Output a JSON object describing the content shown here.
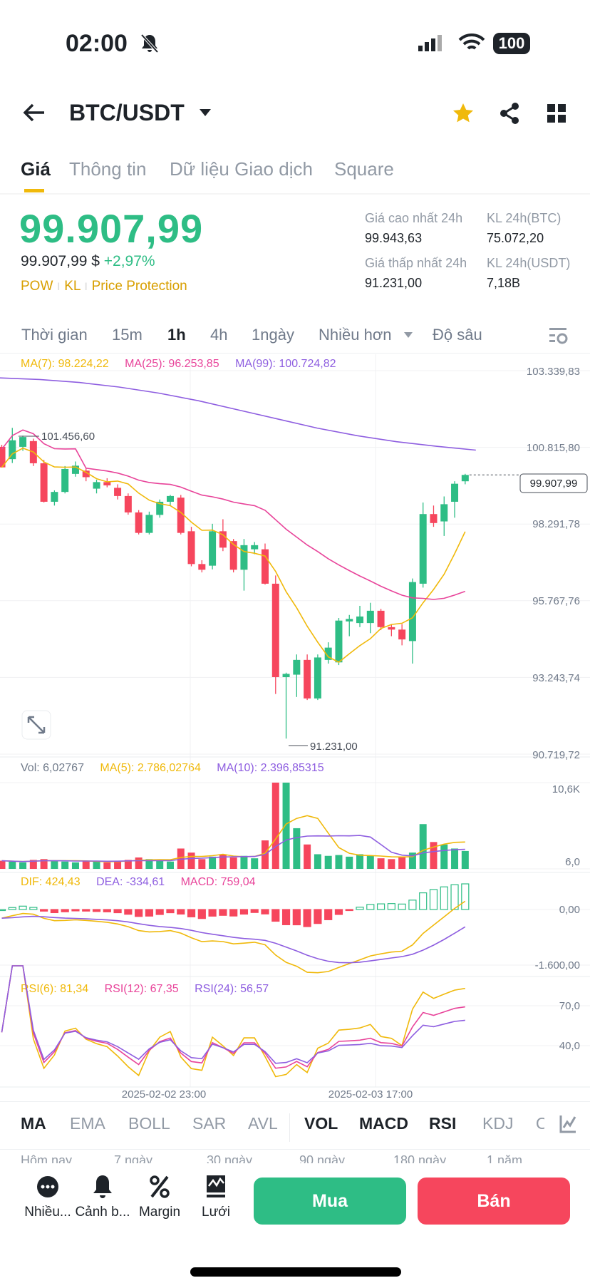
{
  "status": {
    "time": "02:00",
    "battery": "100"
  },
  "header": {
    "pair": "BTC/USDT"
  },
  "tabs": [
    "Giá",
    "Thông tin",
    "Dữ liệu Giao dịch",
    "Square"
  ],
  "price": {
    "last": "99.907,99",
    "usd": "99.907,99 $",
    "change": "+2,97%",
    "tags": [
      "POW",
      "KL",
      "Price Protection"
    ]
  },
  "stats": [
    {
      "label": "Giá cao nhất 24h",
      "value": "99.943,63"
    },
    {
      "label": "KL 24h(BTC)",
      "value": "75.072,20"
    },
    {
      "label": "Giá thấp nhất 24h",
      "value": "91.231,00"
    },
    {
      "label": "KL 24h(USDT)",
      "value": "7,18B"
    }
  ],
  "timeframes": [
    "Thời gian",
    "15m",
    "1h",
    "4h",
    "1ngày",
    "Nhiều hơn",
    "Độ sâu"
  ],
  "legends": {
    "ma7": "MA(7): 98.224,22",
    "ma25": "MA(25): 96.253,85",
    "ma99": "MA(99): 100.724,82",
    "vol": "Vol: 6,02767",
    "vma5": "MA(5): 2.786,02764",
    "vma10": "MA(10): 2.396,85315",
    "dif": "DIF: 424,43",
    "dea": "DEA: -334,61",
    "macd": "MACD: 759,04",
    "rsi6": "RSI(6): 81,34",
    "rsi12": "RSI(12): 67,35",
    "rsi24": "RSI(24): 56,57"
  },
  "colors": {
    "up": "#2ebd85",
    "down": "#f6465d",
    "ma7": "#f0b90b",
    "ma25": "#e8449a",
    "ma99": "#8e5ee0"
  },
  "chart_data": {
    "type": "candlestick",
    "price_ticks": [
      "103.339,83",
      "100.815,80",
      "98.291,78",
      "95.767,76",
      "93.243,74",
      "90.719,72"
    ],
    "price_tick_values": [
      103339.83,
      100815.8,
      98291.78,
      95767.76,
      93243.74,
      90719.72
    ],
    "high_label": "101.456,60",
    "low_label": "91.231,00",
    "last_label": "99.907,99",
    "vol_ticks": [
      "10,6K",
      "6,0"
    ],
    "macd_ticks": [
      "0,00",
      "-1.600,00"
    ],
    "rsi_ticks": [
      "70,0",
      "40,0"
    ],
    "x_labels": [
      "2025-02-02 23:00",
      "2025-02-03 17:00"
    ],
    "ohlc": [
      [
        100832,
        100900,
        100150,
        100157
      ],
      [
        100427,
        101456.6,
        100300,
        101048
      ],
      [
        100832,
        101200,
        100700,
        101155
      ],
      [
        101021,
        101100,
        100200,
        100292
      ],
      [
        100292,
        100400,
        99000,
        99025
      ],
      [
        99025,
        99400,
        98900,
        99348
      ],
      [
        99348,
        100200,
        99300,
        100104
      ],
      [
        99942,
        100350,
        99850,
        100212
      ],
      [
        100050,
        100150,
        99700,
        99834
      ],
      [
        99456,
        99750,
        99300,
        99672
      ],
      [
        99672,
        99800,
        99500,
        99564
      ],
      [
        99483,
        99600,
        99100,
        99214
      ],
      [
        99214,
        99300,
        98600,
        98674
      ],
      [
        98674,
        98750,
        97950,
        98000
      ],
      [
        98000,
        98700,
        97950,
        98593
      ],
      [
        98593,
        99100,
        98500,
        99025
      ],
      [
        99025,
        99250,
        98900,
        99214
      ],
      [
        99160,
        99250,
        97950,
        98000
      ],
      [
        98054,
        98200,
        96900,
        96975
      ],
      [
        96975,
        97100,
        96700,
        96787
      ],
      [
        96921,
        98300,
        96800,
        98054
      ],
      [
        98054,
        98450,
        97400,
        97515
      ],
      [
        97730,
        97800,
        96700,
        96787
      ],
      [
        96787,
        97800,
        96100,
        97596
      ],
      [
        97461,
        97700,
        97300,
        97596
      ],
      [
        97461,
        97650,
        96300,
        96328
      ],
      [
        96328,
        96600,
        92700,
        93253
      ],
      [
        93253,
        93400,
        91231,
        93361
      ],
      [
        93334,
        94000,
        92600,
        93820
      ],
      [
        93820,
        94000,
        92500,
        92552
      ],
      [
        92552,
        94000,
        92500,
        93900
      ],
      [
        93820,
        94400,
        93700,
        94224
      ],
      [
        93739,
        95200,
        93650,
        95114
      ],
      [
        95087,
        95300,
        94600,
        95168
      ],
      [
        95033,
        95600,
        94900,
        95249
      ],
      [
        95033,
        95700,
        94700,
        95438
      ],
      [
        95438,
        95500,
        94800,
        94899
      ],
      [
        94899,
        95000,
        94600,
        94818
      ],
      [
        94818,
        95000,
        94300,
        94494
      ],
      [
        94440,
        96500,
        93700,
        96382
      ],
      [
        96328,
        99000,
        96200,
        98620
      ],
      [
        98620,
        98900,
        98200,
        98324
      ],
      [
        98378,
        99200,
        97900,
        98944
      ],
      [
        99025,
        99700,
        98500,
        99618
      ],
      [
        99699,
        99943.63,
        99600,
        99907.99
      ]
    ],
    "volume_k": [
      1.0,
      0.9,
      0.8,
      1.1,
      1.2,
      1.0,
      0.9,
      0.8,
      1.0,
      0.9,
      0.8,
      1.0,
      1.1,
      1.4,
      1.2,
      1.0,
      0.9,
      2.5,
      2.0,
      1.2,
      1.5,
      1.8,
      1.4,
      1.6,
      1.3,
      3.5,
      10.6,
      10.6,
      5.0,
      3.0,
      1.8,
      1.6,
      1.7,
      1.5,
      1.8,
      1.6,
      1.3,
      1.2,
      1.4,
      2.0,
      5.5,
      3.3,
      3.0,
      2.5,
      2.2
    ],
    "ma99": [
      103100,
      103050,
      102950,
      102800,
      102600,
      102350,
      102050,
      101750,
      101450,
      101200,
      101000,
      100850,
      100724.82
    ]
  }
}
